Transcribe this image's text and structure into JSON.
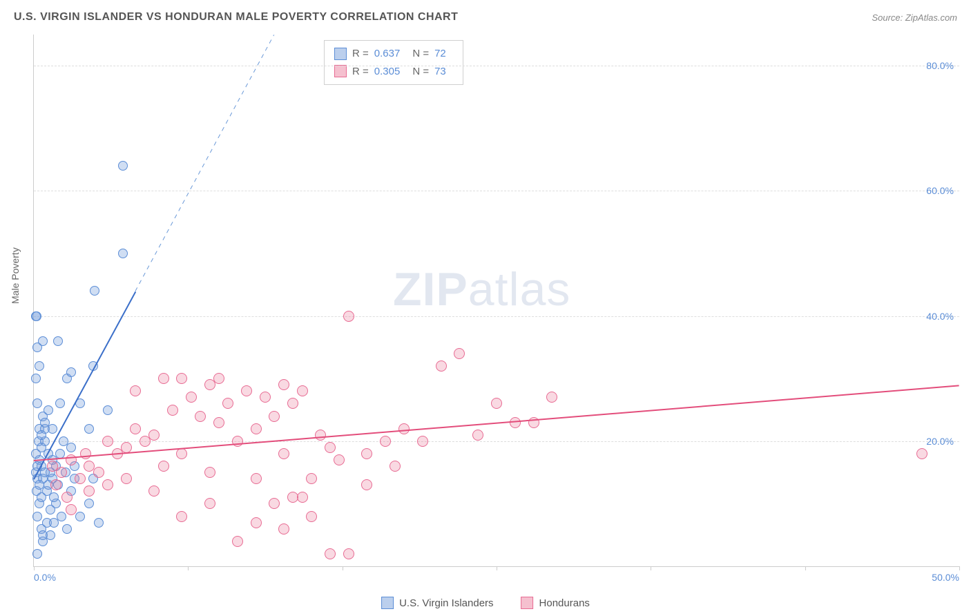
{
  "header": {
    "title": "U.S. VIRGIN ISLANDER VS HONDURAN MALE POVERTY CORRELATION CHART",
    "source": "Source: ZipAtlas.com"
  },
  "chart": {
    "type": "scatter",
    "ylabel": "Male Poverty",
    "xlim": [
      0,
      50
    ],
    "ylim": [
      0,
      85
    ],
    "ytick_positions": [
      20,
      40,
      60,
      80
    ],
    "ytick_labels": [
      "20.0%",
      "40.0%",
      "60.0%",
      "80.0%"
    ],
    "xtick_positions": [
      0,
      25,
      50
    ],
    "xtick_labels": [
      "0.0%",
      "",
      "50.0%"
    ],
    "xtick_marks": [
      0,
      8.33,
      16.67,
      25,
      33.33,
      41.67,
      50
    ],
    "background_color": "#ffffff",
    "grid_color": "#dddddd",
    "series": [
      {
        "name": "U.S. Virgin Islanders",
        "fill": "rgba(120,160,220,0.35)",
        "stroke": "#5b8dd6",
        "marker_radius": 7,
        "trend": {
          "x1": 0,
          "y1": 14,
          "x2": 5.5,
          "y2": 44,
          "color": "#3b6fc9",
          "width": 2
        },
        "trend_ext": {
          "x1": 5.5,
          "y1": 44,
          "x2": 13,
          "y2": 85,
          "color": "#6a99d8",
          "width": 1.3,
          "dash": true
        },
        "points": [
          [
            0.1,
            15
          ],
          [
            0.2,
            14
          ],
          [
            0.3,
            17
          ],
          [
            0.15,
            12
          ],
          [
            0.3,
            10
          ],
          [
            0.2,
            8
          ],
          [
            0.4,
            6
          ],
          [
            0.5,
            4
          ],
          [
            0.1,
            18
          ],
          [
            0.25,
            20
          ],
          [
            0.4,
            16
          ],
          [
            0.5,
            14
          ],
          [
            0.7,
            12
          ],
          [
            0.8,
            18
          ],
          [
            0.3,
            22
          ],
          [
            0.5,
            24
          ],
          [
            0.2,
            26
          ],
          [
            0.6,
            20
          ],
          [
            0.1,
            30
          ],
          [
            0.3,
            32
          ],
          [
            0.2,
            35
          ],
          [
            0.5,
            36
          ],
          [
            0.1,
            40
          ],
          [
            0.15,
            40
          ],
          [
            1.0,
            14
          ],
          [
            1.2,
            16
          ],
          [
            1.4,
            18
          ],
          [
            1.6,
            20
          ],
          [
            1.2,
            10
          ],
          [
            1.5,
            8
          ],
          [
            1.8,
            6
          ],
          [
            2.0,
            12
          ],
          [
            1.8,
            30
          ],
          [
            2.2,
            16
          ],
          [
            2.5,
            26
          ],
          [
            1.3,
            36
          ],
          [
            2.0,
            31
          ],
          [
            3.2,
            32
          ],
          [
            3.0,
            22
          ],
          [
            4.0,
            25
          ],
          [
            3.3,
            44
          ],
          [
            4.8,
            50
          ],
          [
            4.8,
            64
          ],
          [
            2.5,
            8
          ],
          [
            3.0,
            10
          ],
          [
            3.5,
            7
          ],
          [
            2.2,
            14
          ],
          [
            3.2,
            14
          ],
          [
            0.3,
            13
          ],
          [
            0.4,
            19
          ],
          [
            0.6,
            22
          ],
          [
            0.9,
            15
          ],
          [
            1.1,
            11
          ],
          [
            1.3,
            13
          ],
          [
            0.2,
            2
          ],
          [
            0.5,
            5
          ],
          [
            0.7,
            7
          ],
          [
            0.9,
            9
          ],
          [
            0.4,
            11
          ],
          [
            0.6,
            15
          ],
          [
            0.8,
            13
          ],
          [
            1.0,
            17
          ],
          [
            0.2,
            16
          ],
          [
            0.4,
            21
          ],
          [
            0.6,
            23
          ],
          [
            0.8,
            25
          ],
          [
            1.0,
            22
          ],
          [
            1.4,
            26
          ],
          [
            1.7,
            15
          ],
          [
            2.0,
            19
          ],
          [
            0.9,
            5
          ],
          [
            1.1,
            7
          ]
        ]
      },
      {
        "name": "Hondurans",
        "fill": "rgba(235,130,160,0.30)",
        "stroke": "#e86b93",
        "marker_radius": 8,
        "trend": {
          "x1": 0,
          "y1": 17,
          "x2": 50,
          "y2": 29,
          "color": "#e34d7b",
          "width": 2
        },
        "points": [
          [
            1.5,
            15
          ],
          [
            2.0,
            17
          ],
          [
            2.5,
            14
          ],
          [
            3.0,
            16
          ],
          [
            3.5,
            15
          ],
          [
            4.0,
            20
          ],
          [
            4.5,
            18
          ],
          [
            5.0,
            19
          ],
          [
            5.0,
            14
          ],
          [
            5.5,
            22
          ],
          [
            6.0,
            20
          ],
          [
            6.5,
            21
          ],
          [
            7.0,
            16
          ],
          [
            7.5,
            25
          ],
          [
            8.0,
            18
          ],
          [
            8.5,
            27
          ],
          [
            9.0,
            24
          ],
          [
            9.5,
            15
          ],
          [
            10.0,
            23
          ],
          [
            10.5,
            26
          ],
          [
            11.0,
            20
          ],
          [
            11.5,
            28
          ],
          [
            12.0,
            22
          ],
          [
            12.5,
            27
          ],
          [
            13.0,
            24
          ],
          [
            13.5,
            29
          ],
          [
            14.0,
            26
          ],
          [
            14.5,
            28
          ],
          [
            15.0,
            14
          ],
          [
            15.5,
            21
          ],
          [
            16.0,
            19
          ],
          [
            16.5,
            17
          ],
          [
            17.0,
            40
          ],
          [
            18.0,
            13
          ],
          [
            19.0,
            20
          ],
          [
            22.0,
            32
          ],
          [
            23.0,
            34
          ],
          [
            25.0,
            26
          ],
          [
            24.0,
            21
          ],
          [
            28.0,
            27
          ],
          [
            17.0,
            2
          ],
          [
            13.5,
            6
          ],
          [
            14.0,
            11
          ],
          [
            13.0,
            10
          ],
          [
            12.0,
            7
          ],
          [
            9.5,
            10
          ],
          [
            8.0,
            8
          ],
          [
            6.5,
            12
          ],
          [
            5.5,
            28
          ],
          [
            7.0,
            30
          ],
          [
            8.0,
            30
          ],
          [
            9.5,
            29
          ],
          [
            10.0,
            30
          ],
          [
            11.0,
            4
          ],
          [
            12.0,
            14
          ],
          [
            13.5,
            18
          ],
          [
            14.5,
            11
          ],
          [
            15.0,
            8
          ],
          [
            16.0,
            2
          ],
          [
            18.0,
            18
          ],
          [
            19.5,
            16
          ],
          [
            20.0,
            22
          ],
          [
            21.0,
            20
          ],
          [
            26.0,
            23
          ],
          [
            27.0,
            23
          ],
          [
            48.0,
            18
          ],
          [
            2.0,
            9
          ],
          [
            3.0,
            12
          ],
          [
            4.0,
            13
          ],
          [
            1.0,
            16
          ],
          [
            1.2,
            13
          ],
          [
            1.8,
            11
          ],
          [
            2.8,
            18
          ]
        ]
      }
    ]
  },
  "stats_box": {
    "rows": [
      {
        "swatch_fill": "rgba(120,160,220,0.5)",
        "swatch_stroke": "#5b8dd6",
        "r": "0.637",
        "n": "72"
      },
      {
        "swatch_fill": "rgba(235,130,160,0.5)",
        "swatch_stroke": "#e86b93",
        "r": "0.305",
        "n": "73"
      }
    ],
    "r_label": "R  =",
    "n_label": "N  ="
  },
  "bottom_legend": {
    "items": [
      {
        "swatch_fill": "rgba(120,160,220,0.5)",
        "swatch_stroke": "#5b8dd6",
        "label": "U.S. Virgin Islanders"
      },
      {
        "swatch_fill": "rgba(235,130,160,0.5)",
        "swatch_stroke": "#e86b93",
        "label": "Hondurans"
      }
    ]
  },
  "watermark": {
    "bold": "ZIP",
    "rest": "atlas"
  }
}
